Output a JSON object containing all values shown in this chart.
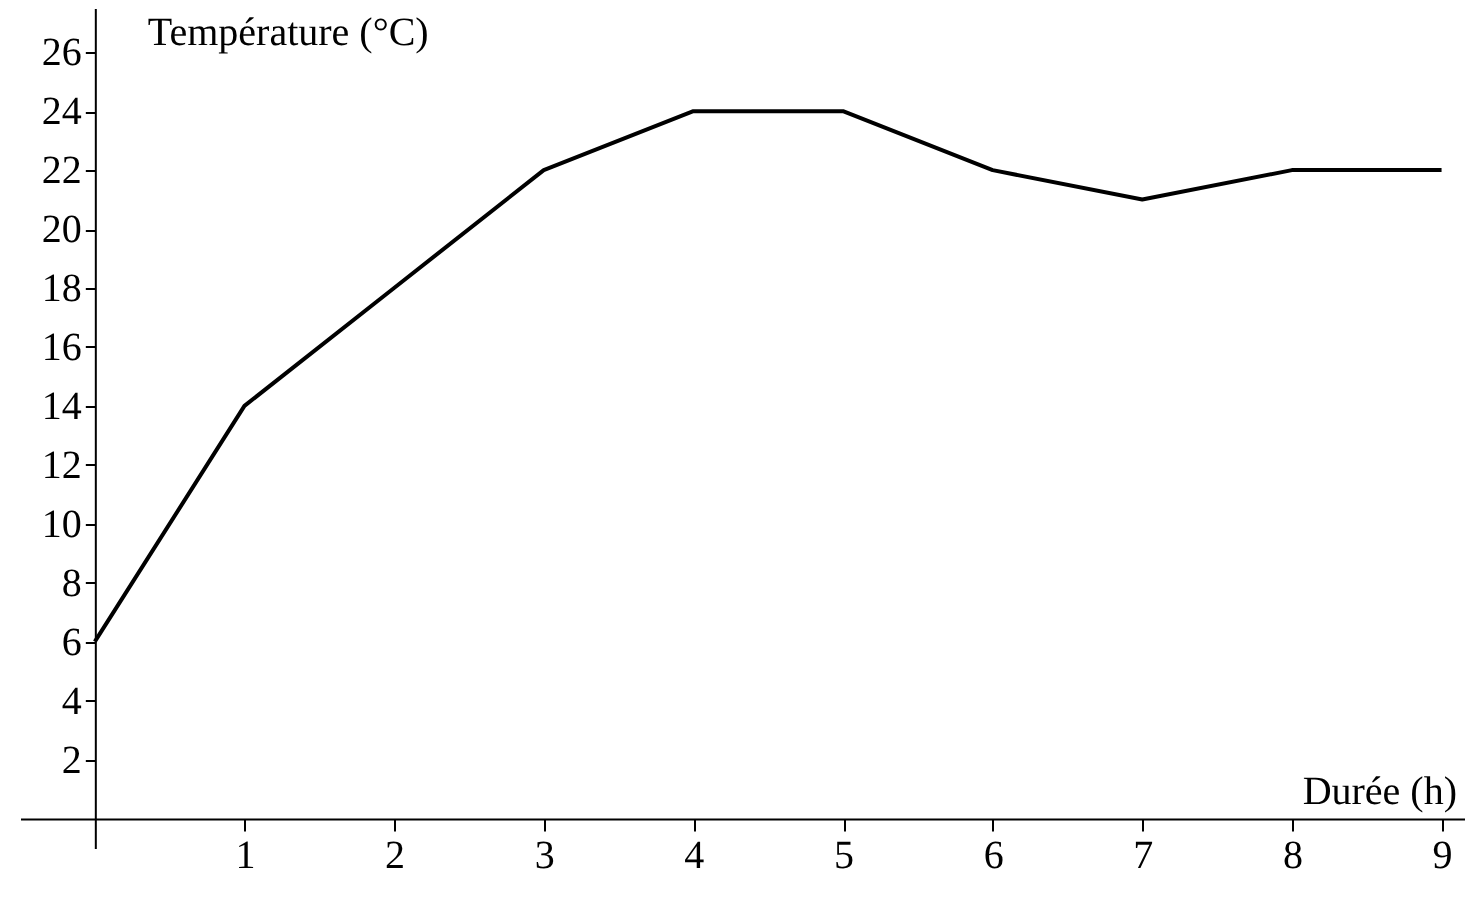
{
  "chart_data": {
    "type": "line",
    "xlabel": "Durée (h)",
    "ylabel": "Température (°C)",
    "x": [
      0,
      1,
      2,
      3,
      4,
      5,
      6,
      7,
      8,
      9
    ],
    "values": [
      6,
      14,
      18,
      22,
      24,
      24,
      22,
      21,
      22,
      22
    ],
    "color": "#000000",
    "line_style": "solid",
    "xlim": [
      -0.5,
      9.15
    ],
    "ylim": [
      -1,
      27.5
    ],
    "xticks": [
      1,
      2,
      3,
      4,
      5,
      6,
      7,
      8,
      9
    ],
    "yticks": [
      2,
      4,
      6,
      8,
      10,
      12,
      14,
      16,
      18,
      20,
      22,
      24,
      26
    ]
  }
}
